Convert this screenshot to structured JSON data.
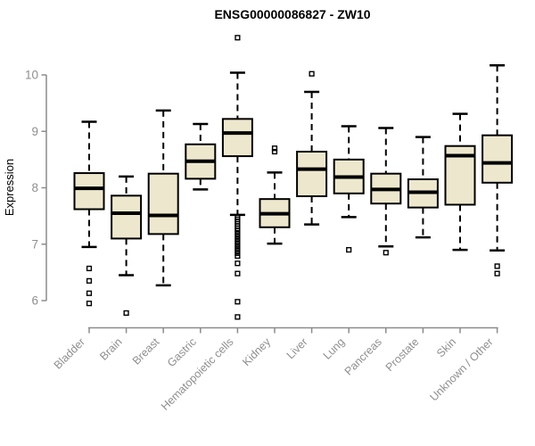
{
  "title": "ENSG00000086827 - ZW10",
  "colors": {
    "box_fill": "#EDE8CD",
    "box_border": "#000000",
    "median": "#000000",
    "whisker": "#000000",
    "outlier": "#000000",
    "axis": "#8c8c8c",
    "tick_label": "#8f8f8f",
    "title": "#000000",
    "background": "#ffffff"
  },
  "chart_data": {
    "type": "boxplot",
    "title": "ENSG00000086827 - ZW10",
    "xlabel": "",
    "ylabel": "Expression",
    "ylim": [
      5.6,
      10.8
    ],
    "yticks": [
      10,
      9,
      8,
      7,
      6
    ],
    "grid": false,
    "legend": "none",
    "categories": [
      "Bladder",
      "Brain",
      "Breast",
      "Gastric",
      "Hematopoietic cells",
      "Kidney",
      "Liver",
      "Lung",
      "Pancreas",
      "Prostate",
      "Skin",
      "Unknown / Other"
    ],
    "series": [
      {
        "name": "Bladder",
        "whisker_low": 6.95,
        "q1": 7.62,
        "median": 7.99,
        "q3": 8.26,
        "whisker_high": 9.17,
        "outliers": [
          6.57,
          6.35,
          6.13,
          5.95
        ]
      },
      {
        "name": "Brain",
        "whisker_low": 6.45,
        "q1": 7.1,
        "median": 7.55,
        "q3": 7.86,
        "whisker_high": 8.2,
        "outliers": [
          5.78
        ]
      },
      {
        "name": "Breast",
        "whisker_low": 6.27,
        "q1": 7.18,
        "median": 7.51,
        "q3": 8.25,
        "whisker_high": 9.37,
        "outliers": []
      },
      {
        "name": "Gastric",
        "whisker_low": 7.97,
        "q1": 8.16,
        "median": 8.47,
        "q3": 8.77,
        "whisker_high": 9.13,
        "outliers": []
      },
      {
        "name": "Hematopoietic cells",
        "whisker_low": 7.52,
        "q1": 8.56,
        "median": 8.97,
        "q3": 9.22,
        "whisker_high": 10.04,
        "outliers": [
          10.66,
          7.48,
          7.44,
          7.4,
          7.36,
          7.32,
          7.28,
          7.24,
          7.19,
          7.14,
          7.09,
          7.04,
          6.99,
          6.94,
          6.89,
          6.84,
          6.79,
          6.66,
          6.48,
          5.98,
          5.71
        ]
      },
      {
        "name": "Kidney",
        "whisker_low": 7.01,
        "q1": 7.3,
        "median": 7.54,
        "q3": 7.8,
        "whisker_high": 8.27,
        "outliers": [
          8.7,
          8.64
        ]
      },
      {
        "name": "Liver",
        "whisker_low": 7.35,
        "q1": 7.85,
        "median": 8.33,
        "q3": 8.64,
        "whisker_high": 9.7,
        "outliers": [
          10.02
        ]
      },
      {
        "name": "Lung",
        "whisker_low": 7.48,
        "q1": 7.9,
        "median": 8.19,
        "q3": 8.5,
        "whisker_high": 9.09,
        "outliers": [
          6.9
        ]
      },
      {
        "name": "Pancreas",
        "whisker_low": 6.96,
        "q1": 7.72,
        "median": 7.97,
        "q3": 8.25,
        "whisker_high": 9.06,
        "outliers": [
          6.85
        ]
      },
      {
        "name": "Prostate",
        "whisker_low": 7.12,
        "q1": 7.65,
        "median": 7.92,
        "q3": 8.15,
        "whisker_high": 8.9,
        "outliers": []
      },
      {
        "name": "Skin",
        "whisker_low": 6.9,
        "q1": 7.7,
        "median": 8.57,
        "q3": 8.74,
        "whisker_high": 9.31,
        "outliers": []
      },
      {
        "name": "Unknown / Other",
        "whisker_low": 6.89,
        "q1": 8.09,
        "median": 8.44,
        "q3": 8.93,
        "whisker_high": 10.17,
        "outliers": [
          6.61,
          6.48
        ]
      }
    ]
  }
}
